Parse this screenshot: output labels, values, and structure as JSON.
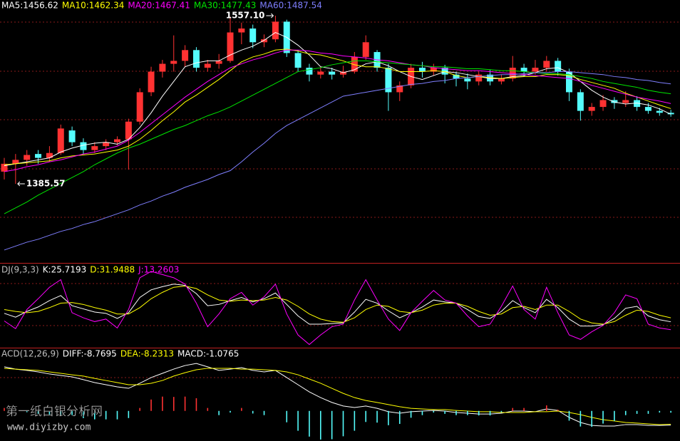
{
  "watermark": {
    "name": "第一纸白银分析网",
    "url": "www.diyizby.com"
  },
  "chart_data": [
    {
      "type": "candlestick",
      "ylim": [
        1305.6,
        1573.1
      ],
      "up_color": "#ff3232",
      "down_color": "#54fcfc",
      "high_label": "1557.10",
      "low_label": "1385.57",
      "candles": {
        "open": [
          1398,
          1406,
          1410,
          1416,
          1412,
          1417,
          1440,
          1428,
          1420,
          1424,
          1428,
          1431,
          1449,
          1479,
          1500,
          1508,
          1511,
          1522,
          1504,
          1508,
          1511,
          1540,
          1544,
          1530,
          1533,
          1551,
          1519,
          1504,
          1497,
          1500,
          1497,
          1500,
          1515,
          1520,
          1504,
          1479,
          1486,
          1504,
          1500,
          1504,
          1497,
          1493,
          1490,
          1497,
          1490,
          1493,
          1504,
          1500,
          1504,
          1511,
          1500,
          1479,
          1460,
          1464,
          1471,
          1468,
          1471,
          1464,
          1460,
          1458
        ],
        "close": [
          1406,
          1410,
          1415,
          1412,
          1417,
          1442,
          1428,
          1420,
          1424,
          1428,
          1431,
          1449,
          1479,
          1500,
          1508,
          1511,
          1522,
          1504,
          1508,
          1511,
          1540,
          1544,
          1530,
          1533,
          1551,
          1519,
          1504,
          1497,
          1500,
          1497,
          1500,
          1515,
          1530,
          1504,
          1479,
          1486,
          1504,
          1500,
          1504,
          1497,
          1493,
          1490,
          1497,
          1490,
          1493,
          1504,
          1500,
          1504,
          1511,
          1500,
          1479,
          1460,
          1464,
          1471,
          1468,
          1471,
          1464,
          1460,
          1458,
          1456.5
        ],
        "low": [
          1390,
          1385.57,
          1404,
          1406,
          1408,
          1415,
          1424,
          1416,
          1417,
          1420,
          1425,
          1400,
          1446,
          1475,
          1494,
          1500,
          1505,
          1500,
          1500,
          1503,
          1509,
          1528,
          1524,
          1525,
          1530,
          1515,
          1500,
          1490,
          1493,
          1492,
          1494,
          1498,
          1512,
          1500,
          1460,
          1470,
          1483,
          1494,
          1496,
          1488,
          1485,
          1482,
          1486,
          1486,
          1487,
          1490,
          1495,
          1497,
          1500,
          1496,
          1470,
          1450,
          1455,
          1460,
          1462,
          1464,
          1460,
          1457,
          1455,
          1454
        ],
        "high": [
          1412,
          1416,
          1420,
          1420,
          1424,
          1446,
          1444,
          1432,
          1428,
          1431,
          1434,
          1452,
          1483,
          1505,
          1512,
          1537,
          1527,
          1525,
          1512,
          1518,
          1556,
          1550,
          1548,
          1538,
          1557.1,
          1553,
          1522,
          1508,
          1505,
          1504,
          1506,
          1520,
          1537,
          1522,
          1508,
          1490,
          1508,
          1510,
          1508,
          1507,
          1500,
          1498,
          1500,
          1502,
          1497,
          1516,
          1508,
          1512,
          1516,
          1514,
          1503,
          1482,
          1468,
          1476,
          1474,
          1480,
          1475,
          1468,
          1463,
          1461
        ]
      },
      "series": [
        {
          "name": "MA5:1456.62",
          "color": "#ffffff",
          "values": [
            1404,
            1406,
            1408,
            1410,
            1412,
            1418,
            1422,
            1425,
            1427,
            1428,
            1426,
            1431,
            1443,
            1458,
            1475,
            1490,
            1505,
            1509,
            1511,
            1511,
            1517,
            1522,
            1526,
            1532,
            1540,
            1535,
            1527,
            1517,
            1505,
            1503,
            1499,
            1502,
            1508,
            1510,
            1506,
            1500,
            1495,
            1492,
            1496,
            1500,
            1499,
            1497,
            1495,
            1493,
            1493,
            1495,
            1496,
            1499,
            1503,
            1504,
            1499,
            1490,
            1481,
            1474,
            1469,
            1467,
            1468,
            1466,
            1462,
            1456.6
          ]
        },
        {
          "name": "MA10:1462.34",
          "color": "#ffff00",
          "values": [
            1405,
            1406,
            1407,
            1408,
            1409,
            1412,
            1414,
            1415,
            1416,
            1418,
            1420,
            1424,
            1431,
            1440,
            1450,
            1459,
            1469,
            1476,
            1484,
            1492,
            1501,
            1510,
            1515,
            1518,
            1522,
            1523,
            1521,
            1518,
            1517,
            1514,
            1511,
            1507,
            1505,
            1505,
            1503,
            1500,
            1500,
            1500,
            1501,
            1500,
            1496,
            1494,
            1495,
            1494,
            1493,
            1494,
            1495,
            1495,
            1497,
            1497,
            1496,
            1492,
            1489,
            1486,
            1483,
            1478,
            1474,
            1470,
            1466,
            1462.3
          ]
        },
        {
          "name": "MA20:1467.41",
          "color": "#ff00ff",
          "values": [
            1398,
            1400,
            1403,
            1405,
            1408,
            1410,
            1413,
            1416,
            1418,
            1421,
            1424,
            1430,
            1438,
            1447,
            1456,
            1465,
            1474,
            1482,
            1490,
            1497,
            1504,
            1508,
            1512,
            1515,
            1519,
            1522,
            1522,
            1521,
            1519,
            1518,
            1516,
            1515,
            1514,
            1512,
            1511,
            1509,
            1507,
            1506,
            1504,
            1503,
            1502,
            1501,
            1501,
            1500,
            1499,
            1498,
            1497,
            1496,
            1495,
            1494,
            1493,
            1490,
            1486,
            1483,
            1480,
            1477,
            1474,
            1472,
            1470,
            1467.4
          ]
        },
        {
          "name": "MA30:1477.43",
          "color": "#00e600",
          "values": [
            1355,
            1361,
            1367,
            1374,
            1380,
            1386,
            1392,
            1398,
            1405,
            1411,
            1417,
            1422,
            1426,
            1431,
            1436,
            1441,
            1445,
            1450,
            1455,
            1459,
            1464,
            1470,
            1476,
            1482,
            1488,
            1494,
            1500,
            1502,
            1504,
            1507,
            1509,
            1511,
            1511,
            1510,
            1509,
            1508,
            1507,
            1506,
            1505,
            1505,
            1504,
            1503,
            1503,
            1502,
            1501,
            1501,
            1500,
            1499,
            1498,
            1498,
            1497,
            1495,
            1493,
            1490,
            1488,
            1486,
            1484,
            1481,
            1479,
            1477.4
          ]
        },
        {
          "name": "MA60:1487.54",
          "color": "#7f7fff",
          "values": [
            1318,
            1322,
            1326,
            1329,
            1333,
            1337,
            1340,
            1344,
            1347,
            1351,
            1355,
            1359,
            1364,
            1368,
            1373,
            1377,
            1382,
            1386,
            1390,
            1395,
            1399,
            1408,
            1418,
            1427,
            1437,
            1445,
            1451,
            1457,
            1463,
            1469,
            1475,
            1477,
            1479,
            1481,
            1483,
            1485,
            1487,
            1488,
            1490,
            1491,
            1493,
            1494,
            1495,
            1496,
            1497,
            1497,
            1498,
            1499,
            1499,
            1500,
            1500,
            1499,
            1498,
            1497,
            1495,
            1494,
            1492,
            1491,
            1489,
            1487.5
          ]
        }
      ]
    },
    {
      "type": "line",
      "title": "DJ(9,3,3)",
      "ylim": [
        -15,
        115
      ],
      "series": [
        {
          "name": "K:25.7193",
          "color": "#ffffff",
          "values": [
            39,
            33,
            42,
            49,
            59,
            67,
            51,
            46,
            41,
            39,
            31,
            40,
            64,
            76,
            81,
            85,
            83,
            70,
            51,
            53,
            59,
            64,
            57,
            62,
            71,
            53,
            35,
            22,
            22,
            23,
            24,
            41,
            61,
            55,
            43,
            32,
            40,
            49,
            60,
            57,
            55,
            45,
            34,
            31,
            42,
            59,
            48,
            40,
            61,
            48,
            30,
            19,
            19,
            21,
            31,
            47,
            50,
            35,
            29,
            25.7
          ]
        },
        {
          "name": "D:31.9488",
          "color": "#ffff00",
          "values": [
            45,
            42,
            40,
            42,
            48,
            55,
            56,
            53,
            48,
            44,
            38,
            38,
            48,
            62,
            72,
            80,
            82,
            78,
            68,
            60,
            58,
            60,
            59,
            60,
            64,
            60,
            50,
            38,
            30,
            26,
            25,
            32,
            45,
            52,
            50,
            42,
            40,
            44,
            52,
            55,
            55,
            50,
            42,
            36,
            38,
            48,
            50,
            45,
            52,
            52,
            42,
            30,
            24,
            22,
            26,
            36,
            44,
            42,
            36,
            31.9
          ]
        },
        {
          "name": "J:13.2603",
          "color": "#ff00ff",
          "values": [
            27,
            15,
            45,
            62,
            80,
            92,
            40,
            32,
            26,
            30,
            16,
            45,
            95,
            105,
            100,
            95,
            85,
            55,
            18,
            38,
            62,
            72,
            52,
            65,
            85,
            38,
            5,
            -10,
            5,
            18,
            22,
            60,
            92,
            60,
            30,
            12,
            40,
            58,
            75,
            60,
            55,
            35,
            18,
            22,
            50,
            82,
            45,
            30,
            80,
            40,
            5,
            -2,
            10,
            20,
            40,
            68,
            62,
            22,
            16,
            13.3
          ]
        }
      ]
    },
    {
      "type": "combo",
      "title": "ACD(12,26,9)",
      "ylim": [
        -18.5,
        38
      ],
      "series": [
        {
          "name": "DIFF:-8.7695",
          "type": "line",
          "color": "#ffffff",
          "values": [
            27.1,
            25.7,
            24.9,
            24.0,
            22.7,
            21.8,
            20.9,
            19.2,
            17.4,
            16.1,
            14.8,
            13.9,
            17.0,
            20.5,
            23.1,
            25.7,
            27.9,
            29.2,
            27.1,
            24.9,
            25.7,
            26.6,
            24.9,
            24.0,
            24.9,
            20.5,
            16.1,
            11.7,
            8.2,
            5.2,
            3.0,
            2.1,
            3.0,
            1.6,
            -0.5,
            -1.4,
            -0.5,
            -0.1,
            0.3,
            -0.1,
            -1.0,
            -1.4,
            -1.9,
            -1.9,
            -1.4,
            -0.1,
            -0.1,
            -0.5,
            1.2,
            0.3,
            -4.0,
            -7.1,
            -8.9,
            -9.3,
            -9.3,
            -8.4,
            -8.4,
            -8.9,
            -8.9,
            -8.77
          ]
        },
        {
          "name": "DEA:-8.2313",
          "type": "line",
          "color": "#ffff00",
          "values": [
            26.2,
            25.7,
            25.3,
            24.9,
            24.0,
            23.1,
            22.2,
            21.4,
            20.0,
            18.7,
            17.4,
            16.1,
            16.1,
            17.0,
            18.7,
            21.4,
            23.5,
            25.3,
            26.2,
            26.2,
            26.2,
            25.7,
            25.7,
            25.3,
            24.9,
            24.0,
            22.2,
            19.6,
            17.0,
            13.9,
            10.8,
            8.2,
            6.4,
            5.2,
            3.9,
            2.6,
            1.6,
            1.2,
            0.8,
            0.8,
            0.3,
            -0.1,
            -0.5,
            -0.5,
            -1.0,
            -1.0,
            -1.0,
            -0.5,
            -0.5,
            -0.1,
            -1.0,
            -2.3,
            -4.0,
            -5.4,
            -6.2,
            -7.1,
            -7.5,
            -8.0,
            -8.4,
            -8.23
          ]
        },
        {
          "name": "MACD:-1.0765",
          "type": "bar",
          "color": "#ffffff",
          "up_color": "#ff3232",
          "down_color": "#54fcfc",
          "values": [
            1.8,
            0,
            -0.8,
            -1.8,
            -2.6,
            -2.6,
            -2.6,
            -4.4,
            -5.2,
            -5.2,
            -5.2,
            -4.4,
            1.8,
            7.0,
            8.8,
            8.6,
            8.8,
            7.8,
            1.8,
            -2.6,
            -1.0,
            1.8,
            -1.6,
            -2.6,
            0,
            -7.0,
            -12.2,
            -15.8,
            -17.6,
            -17.4,
            -15.6,
            -12.2,
            -6.8,
            -7.2,
            -8.8,
            -8.0,
            -4.2,
            -2.6,
            -1.0,
            -1.8,
            -2.6,
            -2.6,
            -2.8,
            -2.8,
            -0.8,
            1.8,
            1.8,
            0,
            3.4,
            0.8,
            -6.0,
            -9.6,
            -9.8,
            -7.8,
            -6.2,
            -2.6,
            -1.8,
            -1.8,
            -1.0,
            -1.08
          ]
        }
      ]
    }
  ]
}
